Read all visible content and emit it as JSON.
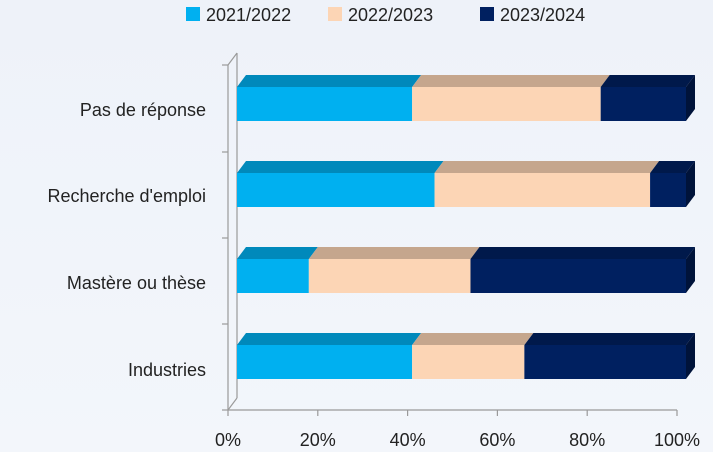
{
  "chart_data": {
    "type": "bar",
    "orientation": "horizontal",
    "stacked": "percent",
    "style": "3d",
    "categories": [
      "Pas de réponse",
      "Recherche d'emploi",
      "Mastère ou thèse",
      "Industries"
    ],
    "series": [
      {
        "name": "2021/2022",
        "color": "#00b0f0",
        "values": [
          39,
          44,
          16,
          39
        ]
      },
      {
        "name": "2022/2023",
        "color": "#fcd5b5",
        "values": [
          42,
          48,
          36,
          25
        ]
      },
      {
        "name": "2023/2024",
        "color": "#002060",
        "values": [
          19,
          8,
          48,
          36
        ]
      }
    ],
    "xlim": [
      0,
      100
    ],
    "xticks": [
      "0%",
      "20%",
      "40%",
      "60%",
      "80%",
      "100%"
    ],
    "legend_position": "top",
    "grid": false
  }
}
